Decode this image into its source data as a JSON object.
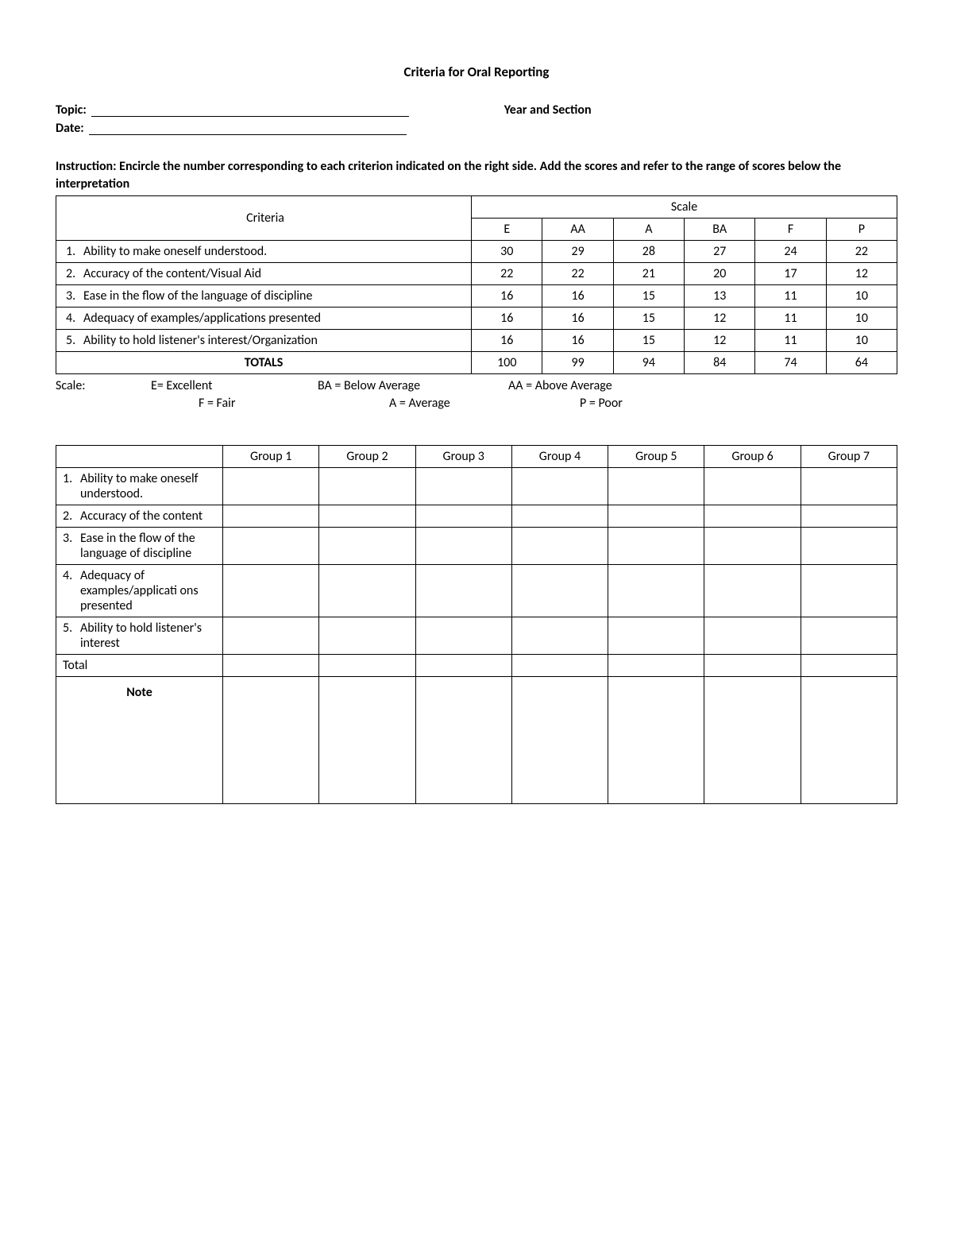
{
  "title": "Criteria for Oral Reporting",
  "fields": {
    "topic_label": "Topic:",
    "date_label": "Date:",
    "year_section_label": "Year and Section"
  },
  "instruction": "Instruction: Encircle the number corresponding to each criterion indicated on the right side. Add the scores and refer to the range of scores below the interpretation",
  "rubric": {
    "criteria_header": "Criteria",
    "scale_header": "Scale",
    "scale_codes": [
      "E",
      "AA",
      "A",
      "BA",
      "F",
      "P"
    ],
    "rows": [
      {
        "num": "1.",
        "text": "Ability to make oneself understood.",
        "scores": [
          "30",
          "29",
          "28",
          "27",
          "24",
          "22"
        ]
      },
      {
        "num": "2.",
        "text": "Accuracy of the content/Visual Aid",
        "scores": [
          "22",
          "22",
          "21",
          "20",
          "17",
          "12"
        ]
      },
      {
        "num": "3.",
        "text": "Ease in the flow of the language of discipline",
        "scores": [
          "16",
          "16",
          "15",
          "13",
          "11",
          "10"
        ]
      },
      {
        "num": "4.",
        "text": "Adequacy of examples/applications presented",
        "scores": [
          "16",
          "16",
          "15",
          "12",
          "11",
          "10"
        ]
      },
      {
        "num": "5.",
        "text": "Ability to hold listener's interest/Organization",
        "scores": [
          "16",
          "16",
          "15",
          "12",
          "11",
          "10"
        ]
      }
    ],
    "totals_label": "TOTALS",
    "totals": [
      "100",
      "99",
      "94",
      "84",
      "74",
      "64"
    ]
  },
  "legend": {
    "label": "Scale:",
    "e": "E= Excellent",
    "ba": "BA = Below Average",
    "aa": "AA = Above Average",
    "f": "F = Fair",
    "a": "A = Average",
    "p": "P = Poor"
  },
  "groups_table": {
    "group_headers": [
      "Group 1",
      "Group 2",
      "Group 3",
      "Group 4",
      "Group 5",
      "Group 6",
      "Group 7"
    ],
    "rows": [
      {
        "num": "1.",
        "text": "Ability to make oneself understood."
      },
      {
        "num": "2.",
        "text": "Accuracy of the content"
      },
      {
        "num": "3.",
        "text": "Ease in the flow of the language of discipline"
      },
      {
        "num": "4.",
        "text": "Adequacy of examples/applicati ons presented"
      },
      {
        "num": "5.",
        "text": "Ability to hold listener's interest"
      }
    ],
    "total_label": "Total",
    "note_label": "Note"
  }
}
